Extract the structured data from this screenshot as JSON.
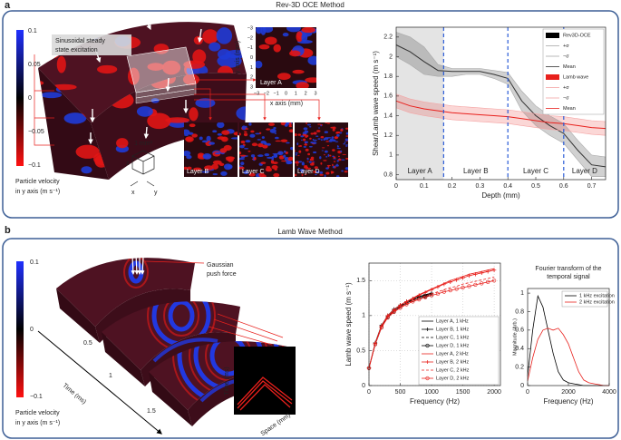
{
  "panel_a": {
    "label": "a",
    "title": "Rev-3D OCE Method",
    "excitation_label": [
      "Sinusoidal steady",
      "state excitation"
    ],
    "scale_label": "1 mm³",
    "cube_axes": [
      "z",
      "x",
      "y"
    ],
    "colorbar": {
      "ticks": [
        "0.1",
        "0.05",
        "0",
        "−0.05",
        "−0.1"
      ],
      "label": [
        "Particle velocity",
        "in y axis (m s⁻¹)"
      ]
    },
    "inset": {
      "label": "Layer A",
      "y_axis_label": "y axis (mm)",
      "x_axis_label": "x axis (mm)",
      "y_ticks": [
        "−3",
        "−2",
        "−1",
        "0",
        "1",
        "2",
        "3"
      ],
      "x_ticks": [
        "−3",
        "−2",
        "−1",
        "0",
        "1",
        "2",
        "3"
      ]
    },
    "layer_insets": [
      "Layer B",
      "Layer C",
      "Layer D"
    ]
  },
  "panel_b": {
    "label": "b",
    "title": "Lamb Wave Method",
    "push_label": [
      "Gaussian",
      "push force"
    ],
    "colorbar": {
      "ticks": [
        "0.1",
        "0",
        "−0.1"
      ],
      "label": [
        "Particle velocity",
        "in y axis (m s⁻¹)"
      ]
    },
    "time_axis_label": "Time (ms)",
    "time_ticks": [
      "0.5",
      "1",
      "1.5"
    ],
    "inset": {
      "y_label": "Time (ms)",
      "x_label": "Space (mm)"
    }
  },
  "chart_data": [
    {
      "type": "line",
      "x_label": "Depth (mm)",
      "y_label": "Shear/Lamb wave speed (m s⁻¹)",
      "xlim": [
        0,
        0.75
      ],
      "ylim": [
        0.75,
        2.3
      ],
      "xticks": [
        0,
        0.1,
        0.2,
        0.3,
        0.4,
        0.5,
        0.6,
        0.7
      ],
      "yticks": [
        0.8,
        1,
        1.2,
        1.4,
        1.6,
        1.8,
        2,
        2.2
      ],
      "layers": [
        "Layer A",
        "Layer B",
        "Layer C",
        "Layer D"
      ],
      "layer_boundaries": [
        0.17,
        0.4,
        0.6
      ],
      "boundary_color": "#2a5bd7",
      "shade_color": "#e4e4e4",
      "x": [
        0,
        0.05,
        0.1,
        0.15,
        0.2,
        0.25,
        0.3,
        0.35,
        0.4,
        0.45,
        0.5,
        0.55,
        0.6,
        0.65,
        0.7,
        0.75
      ],
      "groups": [
        {
          "name": "Rev3D-OCE",
          "color": "#000000",
          "series": [
            {
              "name": "+σ",
              "color": "#a8a8a8",
              "values": [
                2.25,
                2.2,
                2.1,
                1.92,
                1.88,
                1.88,
                1.88,
                1.86,
                1.84,
                1.65,
                1.5,
                1.4,
                1.32,
                1.15,
                1.0,
                0.98
              ]
            },
            {
              "name": "−σ",
              "color": "#a8a8a8",
              "values": [
                2.0,
                1.92,
                1.82,
                1.8,
                1.8,
                1.82,
                1.82,
                1.78,
                1.72,
                1.45,
                1.3,
                1.2,
                1.12,
                0.95,
                0.78,
                0.78
              ]
            },
            {
              "name": "Mean",
              "color": "#333333",
              "values": [
                2.12,
                2.05,
                1.95,
                1.86,
                1.85,
                1.85,
                1.85,
                1.82,
                1.78,
                1.55,
                1.4,
                1.3,
                1.22,
                1.05,
                0.9,
                0.88
              ]
            }
          ]
        },
        {
          "name": "Lamb wave",
          "color": "#e8201c",
          "series": [
            {
              "name": "+σ",
              "color": "#f4a3a3",
              "values": [
                1.62,
                1.57,
                1.54,
                1.52,
                1.5,
                1.49,
                1.48,
                1.47,
                1.46,
                1.44,
                1.42,
                1.4,
                1.39,
                1.37,
                1.35,
                1.34
              ]
            },
            {
              "name": "−σ",
              "color": "#f4a3a3",
              "values": [
                1.48,
                1.43,
                1.4,
                1.38,
                1.36,
                1.35,
                1.34,
                1.33,
                1.32,
                1.3,
                1.28,
                1.26,
                1.25,
                1.23,
                1.21,
                1.2
              ]
            },
            {
              "name": "Mean",
              "color": "#e8201c",
              "values": [
                1.55,
                1.5,
                1.47,
                1.45,
                1.43,
                1.42,
                1.41,
                1.4,
                1.39,
                1.37,
                1.35,
                1.33,
                1.32,
                1.3,
                1.28,
                1.27
              ]
            }
          ]
        }
      ]
    },
    {
      "type": "line",
      "x_label": "Frequency (Hz)",
      "y_label": "Lamb wave speed (m s⁻¹)",
      "grid": true,
      "xlim": [
        0,
        2100
      ],
      "ylim": [
        0,
        1.75
      ],
      "xticks": [
        0,
        500,
        1000,
        1500,
        2000
      ],
      "yticks": [
        0,
        0.5,
        1,
        1.5
      ],
      "x": [
        0,
        100,
        200,
        300,
        400,
        500,
        600,
        700,
        800,
        900,
        1000,
        1100,
        1200,
        1300,
        1400,
        1500,
        1600,
        1700,
        1800,
        1900,
        2000
      ],
      "series": [
        {
          "name": "Layer A, 1 kHz",
          "color": "#000000",
          "marker": "none",
          "dash": false,
          "values": [
            0.25,
            0.6,
            0.85,
            1.0,
            1.08,
            1.15,
            1.2,
            1.24,
            1.27,
            1.29,
            1.31,
            null,
            null,
            null,
            null,
            null,
            null,
            null,
            null,
            null,
            null
          ]
        },
        {
          "name": "Layer B, 1 kHz",
          "color": "#000000",
          "marker": "+",
          "dash": false,
          "values": [
            0.25,
            0.61,
            0.86,
            1.0,
            1.09,
            1.15,
            1.2,
            1.24,
            1.27,
            1.3,
            1.32,
            null,
            null,
            null,
            null,
            null,
            null,
            null,
            null,
            null,
            null
          ]
        },
        {
          "name": "Layer C, 1 kHz",
          "color": "#000000",
          "marker": "none",
          "dash": true,
          "values": [
            0.25,
            0.6,
            0.84,
            0.99,
            1.07,
            1.14,
            1.19,
            1.23,
            1.26,
            1.28,
            1.3,
            null,
            null,
            null,
            null,
            null,
            null,
            null,
            null,
            null,
            null
          ]
        },
        {
          "name": "Layer D, 1 kHz",
          "color": "#000000",
          "marker": "o",
          "dash": false,
          "values": [
            0.25,
            0.59,
            0.83,
            0.98,
            1.06,
            1.13,
            1.18,
            1.22,
            1.25,
            1.27,
            1.29,
            null,
            null,
            null,
            null,
            null,
            null,
            null,
            null,
            null,
            null
          ]
        },
        {
          "name": "Layer A, 2 kHz",
          "color": "#e8201c",
          "marker": "none",
          "dash": false,
          "values": [
            0.25,
            0.6,
            0.85,
            1.0,
            1.08,
            1.15,
            1.2,
            1.25,
            1.3,
            1.34,
            1.38,
            1.42,
            1.46,
            1.5,
            1.53,
            1.56,
            1.59,
            1.61,
            1.63,
            1.65,
            1.67
          ]
        },
        {
          "name": "Layer B, 2 kHz",
          "color": "#e8201c",
          "marker": "+",
          "dash": false,
          "values": [
            0.25,
            0.6,
            0.85,
            1.0,
            1.08,
            1.15,
            1.2,
            1.24,
            1.29,
            1.33,
            1.37,
            1.41,
            1.45,
            1.48,
            1.51,
            1.54,
            1.57,
            1.59,
            1.61,
            1.63,
            1.65
          ]
        },
        {
          "name": "Layer C, 2 kHz",
          "color": "#e8201c",
          "marker": "none",
          "dash": true,
          "values": [
            0.25,
            0.6,
            0.84,
            0.98,
            1.06,
            1.12,
            1.17,
            1.21,
            1.25,
            1.28,
            1.31,
            1.34,
            1.37,
            1.4,
            1.42,
            1.45,
            1.47,
            1.49,
            1.51,
            1.53,
            1.55
          ]
        },
        {
          "name": "Layer D, 2 kHz",
          "color": "#e8201c",
          "marker": "o",
          "dash": false,
          "values": [
            0.25,
            0.59,
            0.83,
            0.97,
            1.05,
            1.11,
            1.16,
            1.2,
            1.23,
            1.26,
            1.29,
            1.31,
            1.34,
            1.36,
            1.38,
            1.4,
            1.42,
            1.44,
            1.46,
            1.48,
            1.5
          ]
        }
      ]
    },
    {
      "type": "line",
      "title": [
        "Fourier transform of the",
        "temporal signal"
      ],
      "x_label": "Frequency (Hz)",
      "y_label": "Magnitude (Arb.)",
      "xlim": [
        0,
        4000
      ],
      "ylim": [
        0,
        1.05
      ],
      "xticks": [
        0,
        2000,
        4000
      ],
      "yticks": [
        0,
        0.2,
        0.4,
        0.6,
        0.8,
        1
      ],
      "x": [
        0,
        250,
        500,
        750,
        1000,
        1250,
        1500,
        1750,
        2000,
        2250,
        2500,
        2750,
        3000,
        3250,
        3500,
        3750,
        4000
      ],
      "series": [
        {
          "name": "1 kHz excitation",
          "color": "#000000",
          "marker": "none",
          "dash": false,
          "values": [
            0.1,
            0.6,
            0.97,
            0.85,
            0.6,
            0.35,
            0.15,
            0.06,
            0.03,
            0.02,
            0.01,
            0,
            0,
            0,
            0,
            0,
            0
          ]
        },
        {
          "name": "2 kHz excitation",
          "color": "#e8201c",
          "marker": "none",
          "dash": false,
          "values": [
            0.05,
            0.3,
            0.5,
            0.6,
            0.62,
            0.6,
            0.62,
            0.55,
            0.45,
            0.3,
            0.15,
            0.06,
            0.03,
            0.02,
            0.01,
            0,
            0
          ]
        }
      ]
    }
  ]
}
